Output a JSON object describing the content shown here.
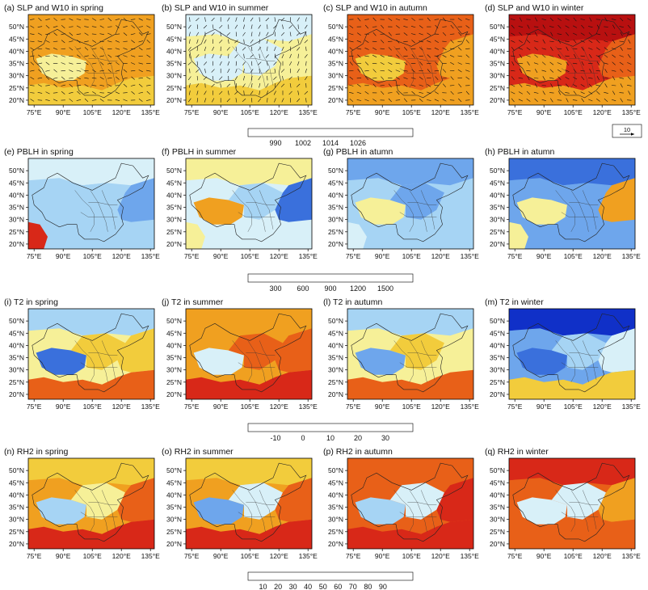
{
  "figure": {
    "panel_titles": [
      [
        "(a) SLP and W10 in spring",
        "(b) SLP and W10 in summer",
        "(c) SLP and W10 in autumn",
        "(d) SLP and W10 in winter"
      ],
      [
        "(e) PBLH in spring",
        "(f) PBLH in summer",
        "(g) PBLH in atumn",
        "(h) PBLH in atumn"
      ],
      [
        "(i) T2 in spring",
        "(j) T2 in summer",
        "(l) T2 in autumn",
        "(m) T2 in winter"
      ],
      [
        "(n) RH2 in spring",
        "(o) RH2 in summer",
        "(p) RH2 in autumn",
        "(q) RH2 in winter"
      ]
    ],
    "lon_ticks": [
      "75°E",
      "90°E",
      "105°E",
      "120°E",
      "135°E"
    ],
    "lat_ticks": [
      "50°N",
      "45°N",
      "40°N",
      "35°N",
      "30°N",
      "25°N",
      "20°N"
    ],
    "wind_reference": "10",
    "colorbars": [
      {
        "variable": "SLP",
        "labels": [
          "990",
          "1002",
          "1014",
          "1026"
        ],
        "colors": [
          "#1030c8",
          "#3a70dc",
          "#6ea6ec",
          "#a6d4f4",
          "#d8f0f8",
          "#f6f098",
          "#f2cc3c",
          "#f0a020",
          "#e86018",
          "#d82818",
          "#b81010",
          "#8a0808"
        ]
      },
      {
        "variable": "PBLH",
        "labels": [
          "300",
          "600",
          "900",
          "1200",
          "1500"
        ],
        "colors": [
          "#1030c8",
          "#3a70dc",
          "#6ea6ec",
          "#a6d4f4",
          "#d8f0f8",
          "#f6f098",
          "#f2cc3c",
          "#f0a020",
          "#e86018",
          "#d82818",
          "#b81010",
          "#8a0808"
        ]
      },
      {
        "variable": "T2",
        "labels": [
          "-10",
          "0",
          "10",
          "20",
          "30"
        ],
        "colors": [
          "#1030c8",
          "#3a70dc",
          "#6ea6ec",
          "#a6d4f4",
          "#d8f0f8",
          "#f6f098",
          "#f2cc3c",
          "#f0a020",
          "#e86018",
          "#d82818",
          "#b81010",
          "#8a0808"
        ]
      },
      {
        "variable": "RH2",
        "labels": [
          "10",
          "20",
          "30",
          "40",
          "50",
          "60",
          "70",
          "80",
          "90"
        ],
        "colors": [
          "#1030c8",
          "#3a70dc",
          "#6ea6ec",
          "#a6d4f4",
          "#d8f0f8",
          "#f6f098",
          "#f2cc3c",
          "#f0a020",
          "#e86018",
          "#d82818",
          "#b81010"
        ]
      }
    ]
  },
  "chart_data": {
    "type": "heatmap",
    "grid": {
      "rows": 4,
      "cols": 4
    },
    "xlim": [
      72,
      137
    ],
    "ylim": [
      18,
      55
    ],
    "xticks": [
      75,
      90,
      105,
      120,
      135
    ],
    "yticks": [
      50,
      45,
      40,
      35,
      30,
      25,
      20
    ],
    "panels": [
      {
        "variable": "SLP",
        "season": "spring",
        "fields": [
          {
            "region": "background",
            "level": 7
          },
          {
            "region": "north",
            "level": 7
          },
          {
            "region": "tibet",
            "level": 5
          },
          {
            "region": "central",
            "level": 7
          },
          {
            "region": "east",
            "level": 7
          },
          {
            "region": "south",
            "level": 6
          }
        ]
      },
      {
        "variable": "SLP",
        "season": "summer",
        "fields": [
          {
            "region": "background",
            "level": 5
          },
          {
            "region": "north",
            "level": 4
          },
          {
            "region": "tibet",
            "level": 4
          },
          {
            "region": "central",
            "level": 4
          },
          {
            "region": "east",
            "level": 5
          },
          {
            "region": "south",
            "level": 6
          }
        ]
      },
      {
        "variable": "SLP",
        "season": "autumn",
        "fields": [
          {
            "region": "background",
            "level": 8
          },
          {
            "region": "north",
            "level": 8
          },
          {
            "region": "tibet",
            "level": 6
          },
          {
            "region": "central",
            "level": 8
          },
          {
            "region": "east",
            "level": 7
          },
          {
            "region": "south",
            "level": 7
          }
        ]
      },
      {
        "variable": "SLP",
        "season": "winter",
        "fields": [
          {
            "region": "background",
            "level": 9
          },
          {
            "region": "north",
            "level": 10
          },
          {
            "region": "tibet",
            "level": 7
          },
          {
            "region": "central",
            "level": 9
          },
          {
            "region": "east",
            "level": 8
          },
          {
            "region": "south",
            "level": 7
          }
        ]
      },
      {
        "variable": "PBLH",
        "season": "spring",
        "fields": [
          {
            "region": "background",
            "level": 3
          },
          {
            "region": "north",
            "level": 4
          },
          {
            "region": "tibet",
            "level": 3
          },
          {
            "region": "central",
            "level": 3
          },
          {
            "region": "east",
            "level": 2
          },
          {
            "region": "southwest",
            "level": 9
          }
        ]
      },
      {
        "variable": "PBLH",
        "season": "summer",
        "fields": [
          {
            "region": "background",
            "level": 4
          },
          {
            "region": "north",
            "level": 5
          },
          {
            "region": "tibet",
            "level": 7
          },
          {
            "region": "central",
            "level": 3
          },
          {
            "region": "east",
            "level": 1
          },
          {
            "region": "southwest",
            "level": 5
          }
        ]
      },
      {
        "variable": "PBLH",
        "season": "autumn",
        "fields": [
          {
            "region": "background",
            "level": 3
          },
          {
            "region": "north",
            "level": 2
          },
          {
            "region": "tibet",
            "level": 5
          },
          {
            "region": "central",
            "level": 2
          },
          {
            "region": "east",
            "level": 3
          },
          {
            "region": "southwest",
            "level": 4
          }
        ]
      },
      {
        "variable": "PBLH",
        "season": "autumn",
        "fields": [
          {
            "region": "background",
            "level": 2
          },
          {
            "region": "north",
            "level": 1
          },
          {
            "region": "tibet",
            "level": 5
          },
          {
            "region": "central",
            "level": 2
          },
          {
            "region": "east",
            "level": 7
          },
          {
            "region": "southwest",
            "level": 5
          }
        ]
      },
      {
        "variable": "T2",
        "season": "spring",
        "fields": [
          {
            "region": "background",
            "level": 5
          },
          {
            "region": "north",
            "level": 3
          },
          {
            "region": "tibet",
            "level": 1
          },
          {
            "region": "central",
            "level": 6
          },
          {
            "region": "east",
            "level": 6
          },
          {
            "region": "south",
            "level": 8
          }
        ]
      },
      {
        "variable": "T2",
        "season": "summer",
        "fields": [
          {
            "region": "background",
            "level": 7
          },
          {
            "region": "north",
            "level": 7
          },
          {
            "region": "tibet",
            "level": 4
          },
          {
            "region": "central",
            "level": 8
          },
          {
            "region": "east",
            "level": 8
          },
          {
            "region": "south",
            "level": 9
          }
        ]
      },
      {
        "variable": "T2",
        "season": "autumn",
        "fields": [
          {
            "region": "background",
            "level": 5
          },
          {
            "region": "north",
            "level": 3
          },
          {
            "region": "tibet",
            "level": 2
          },
          {
            "region": "central",
            "level": 6
          },
          {
            "region": "east",
            "level": 5
          },
          {
            "region": "south",
            "level": 8
          }
        ]
      },
      {
        "variable": "T2",
        "season": "winter",
        "fields": [
          {
            "region": "background",
            "level": 2
          },
          {
            "region": "north",
            "level": 0
          },
          {
            "region": "tibet",
            "level": 1
          },
          {
            "region": "central",
            "level": 3
          },
          {
            "region": "east",
            "level": 4
          },
          {
            "region": "south",
            "level": 6
          }
        ]
      },
      {
        "variable": "RH2",
        "season": "spring",
        "fields": [
          {
            "region": "background",
            "level": 7
          },
          {
            "region": "north",
            "level": 6
          },
          {
            "region": "tibet",
            "level": 3
          },
          {
            "region": "central",
            "level": 5
          },
          {
            "region": "east",
            "level": 8
          },
          {
            "region": "south",
            "level": 9
          }
        ]
      },
      {
        "variable": "RH2",
        "season": "summer",
        "fields": [
          {
            "region": "background",
            "level": 7
          },
          {
            "region": "north",
            "level": 6
          },
          {
            "region": "tibet",
            "level": 2
          },
          {
            "region": "central",
            "level": 4
          },
          {
            "region": "east",
            "level": 8
          },
          {
            "region": "south",
            "level": 9
          }
        ]
      },
      {
        "variable": "RH2",
        "season": "autumn",
        "fields": [
          {
            "region": "background",
            "level": 8
          },
          {
            "region": "north",
            "level": 8
          },
          {
            "region": "tibet",
            "level": 3
          },
          {
            "region": "central",
            "level": 4
          },
          {
            "region": "east",
            "level": 9
          },
          {
            "region": "south",
            "level": 9
          }
        ]
      },
      {
        "variable": "RH2",
        "season": "winter",
        "fields": [
          {
            "region": "background",
            "level": 8
          },
          {
            "region": "north",
            "level": 9
          },
          {
            "region": "tibet",
            "level": 4
          },
          {
            "region": "central",
            "level": 4
          },
          {
            "region": "east",
            "level": 7
          },
          {
            "region": "south",
            "level": 8
          }
        ]
      }
    ],
    "wind_vectors": [
      {
        "season": "spring",
        "u": 4,
        "v": -1
      },
      {
        "season": "summer",
        "u": 1,
        "v": 3
      },
      {
        "season": "autumn",
        "u": 5,
        "v": -2
      },
      {
        "season": "winter",
        "u": 6,
        "v": -4
      }
    ]
  }
}
